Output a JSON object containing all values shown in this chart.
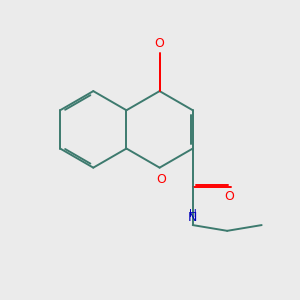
{
  "bg_color": "#ebebeb",
  "bond_color": "#3d7a6e",
  "oxygen_color": "#ff0000",
  "nitrogen_color": "#0000bb",
  "line_width": 1.4,
  "dbo": 0.07,
  "figsize": [
    3.0,
    3.0
  ],
  "dpi": 100,
  "xlim": [
    0,
    10
  ],
  "ylim": [
    0,
    10
  ]
}
